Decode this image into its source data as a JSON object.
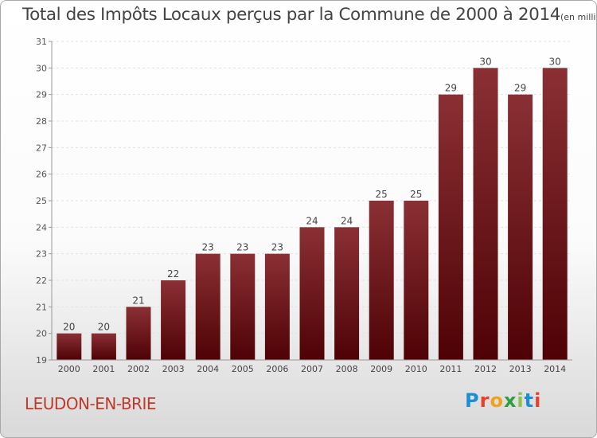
{
  "title": "Total des Impôts Locaux perçus par la Commune de 2000 à 2014",
  "unit_label": "(en milliers d'€)",
  "commune": "LEUDON-EN-BRIE",
  "logo": {
    "text": "Proxiti",
    "colors": [
      "#1a8fd6",
      "#e8402a",
      "#f0a21e",
      "#2f9e3f",
      "#8bc34a",
      "#1a8fd6",
      "#e8402a"
    ]
  },
  "chart_data": {
    "type": "bar",
    "title": "Total des Impôts Locaux perçus par la Commune de 2000 à 2014",
    "xlabel": "",
    "ylabel": "",
    "categories": [
      "2000",
      "2001",
      "2002",
      "2003",
      "2004",
      "2005",
      "2006",
      "2007",
      "2008",
      "2009",
      "2010",
      "2011",
      "2012",
      "2013",
      "2014"
    ],
    "values": [
      20,
      20,
      21,
      22,
      23,
      23,
      23,
      24,
      24,
      25,
      25,
      29,
      30,
      29,
      30
    ],
    "ylim": [
      19,
      31
    ],
    "yticks": [
      19,
      20,
      21,
      22,
      23,
      24,
      25,
      26,
      27,
      28,
      29,
      30,
      31
    ],
    "grid": true,
    "bar_color": "#6b0f12"
  }
}
